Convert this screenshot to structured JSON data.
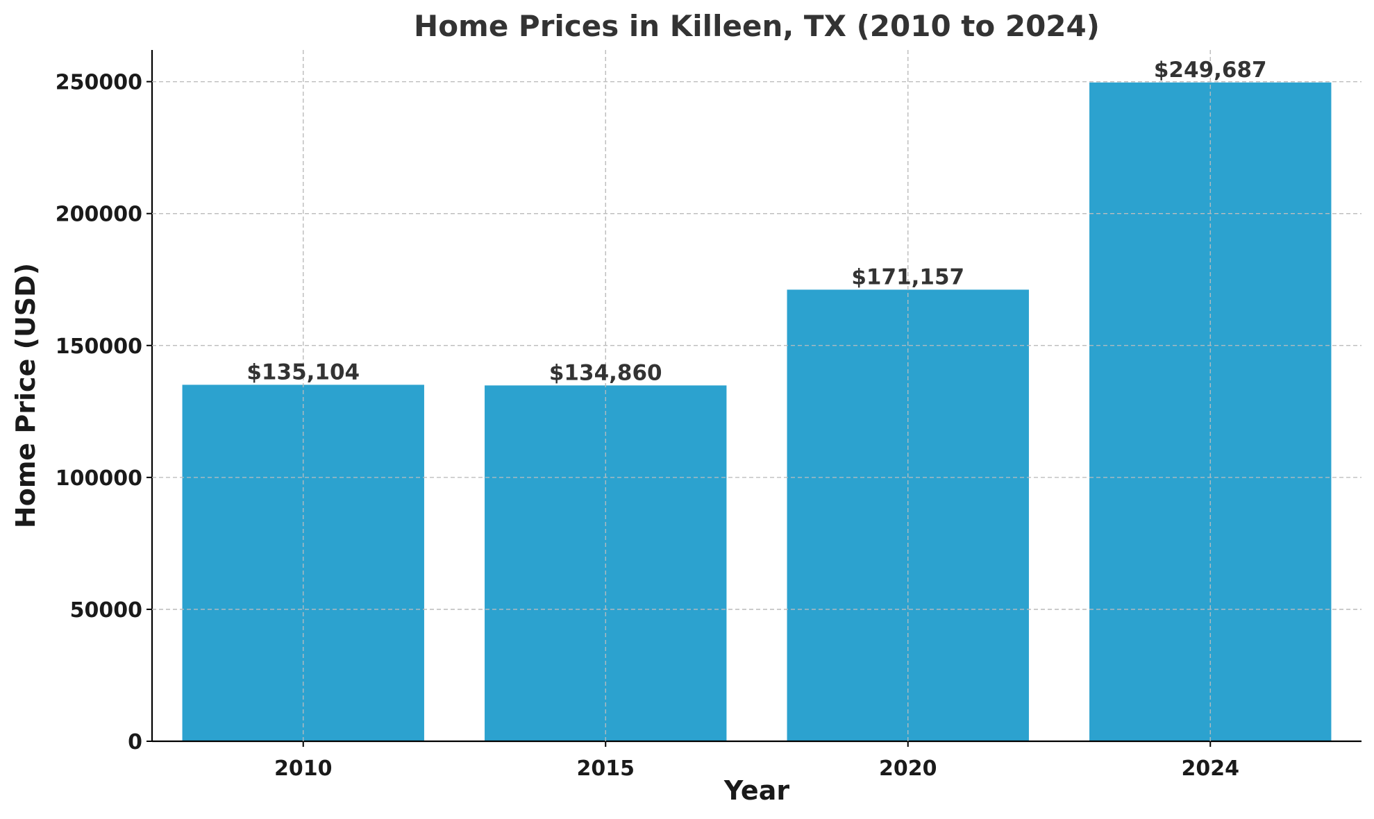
{
  "chart_data": {
    "type": "bar",
    "title": "Home Prices in Killeen, TX (2010 to 2024)",
    "xlabel": "Year",
    "ylabel": "Home Price (USD)",
    "categories": [
      "2010",
      "2015",
      "2020",
      "2024"
    ],
    "values": [
      135104,
      134860,
      171157,
      249687
    ],
    "data_labels": [
      "$135,104",
      "$134,860",
      "$171,157",
      "$249,687"
    ],
    "ylim": [
      0,
      262000
    ],
    "yticks": [
      0,
      50000,
      100000,
      150000,
      200000,
      250000
    ],
    "ytick_labels": [
      "0",
      "50000",
      "100000",
      "150000",
      "200000",
      "250000"
    ],
    "grid": true,
    "bar_color": "#2ca2cf"
  }
}
